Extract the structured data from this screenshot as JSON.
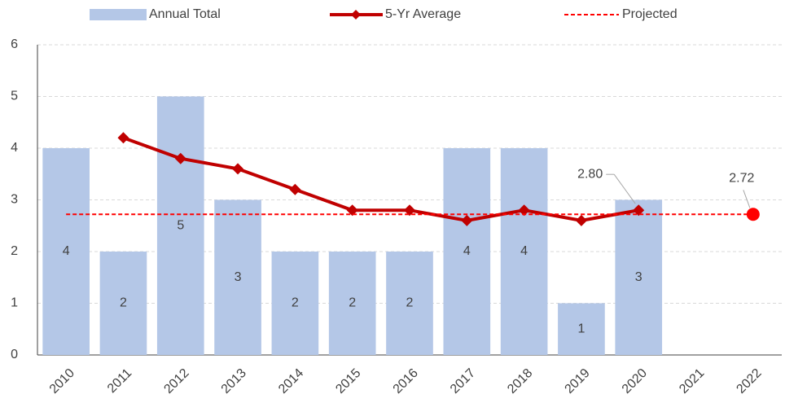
{
  "chart_data": {
    "type": "bar",
    "categories": [
      "2010",
      "2011",
      "2012",
      "2013",
      "2014",
      "2015",
      "2016",
      "2017",
      "2018",
      "2019",
      "2020",
      "2021",
      "2022"
    ],
    "series": [
      {
        "name": "Annual Total",
        "color": "#b4c7e7",
        "values": [
          4,
          2,
          5,
          3,
          2,
          2,
          2,
          4,
          4,
          1,
          3,
          null,
          null
        ]
      },
      {
        "name": "5-Yr Average",
        "color": "#c00000",
        "type": "line",
        "values": [
          null,
          4.2,
          3.8,
          3.6,
          3.2,
          2.8,
          2.8,
          2.6,
          2.8,
          2.6,
          2.8,
          null,
          null
        ],
        "value_labels": [
          null,
          null,
          null,
          null,
          null,
          null,
          null,
          null,
          null,
          null,
          "2.80",
          null,
          null
        ]
      }
    ],
    "projected": {
      "name": "Projected",
      "color": "#ff0000",
      "value": 2.72,
      "label": "2.72"
    },
    "ylim": [
      0,
      6
    ],
    "yticks": [
      0,
      1,
      2,
      3,
      4,
      5,
      6
    ],
    "grid": true,
    "legend": "top"
  }
}
